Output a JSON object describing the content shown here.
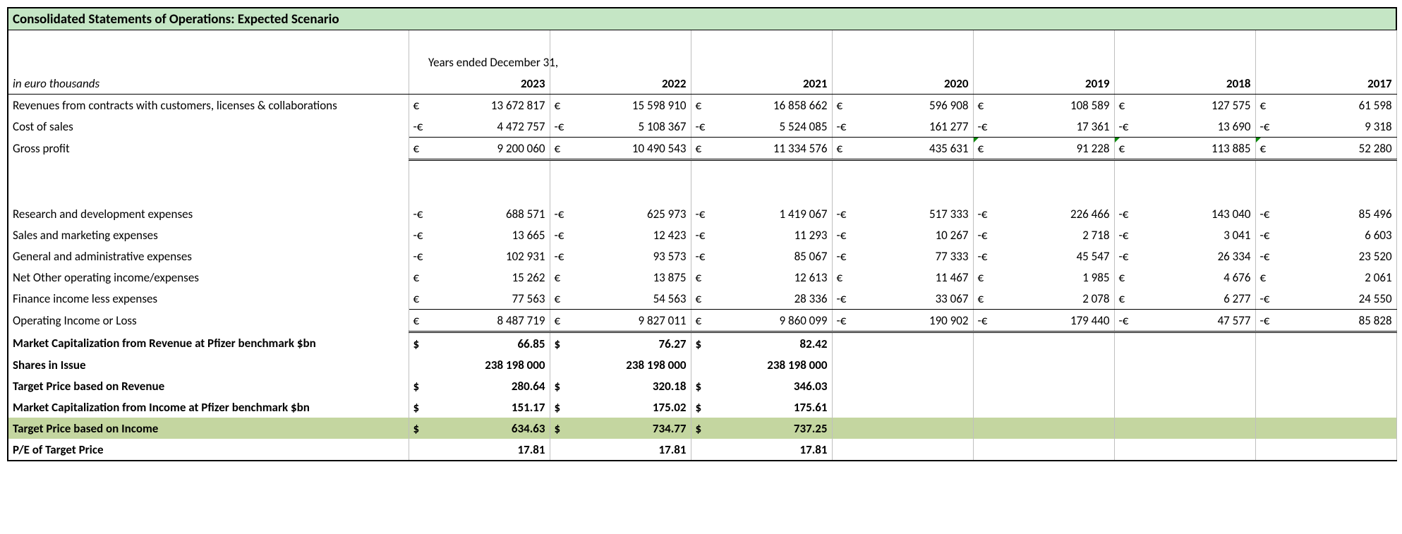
{
  "title": "Consolidated Statements of Operations: Expected Scenario",
  "periodLine": "Years ended December 31,",
  "unitLine": "in euro thousands",
  "years": [
    "2023",
    "2022",
    "2021",
    "2020",
    "2019",
    "2018",
    "2017"
  ],
  "rows": {
    "revenue": {
      "label": "Revenues from contracts with customers, licenses & collaborations",
      "cur": [
        "€",
        "€",
        "€",
        "€",
        "€",
        "€",
        "€"
      ],
      "vals": [
        "13 672 817",
        "15 598 910",
        "16 858 662",
        "596 908",
        "108 589",
        "127 575",
        "61 598"
      ]
    },
    "cos": {
      "label": "Cost of sales",
      "cur": [
        "-€",
        "-€",
        "-€",
        "-€",
        "-€",
        "-€",
        "-€"
      ],
      "vals": [
        "4 472 757",
        "5 108 367",
        "5 524 085",
        "161 277",
        "17 361",
        "13 690",
        "9 318"
      ]
    },
    "gp": {
      "label": "Gross profit",
      "cur": [
        "€",
        "€",
        "€",
        "€",
        "€",
        "€",
        "€"
      ],
      "vals": [
        "9 200 060",
        "10 490 543",
        "11 334 576",
        "435 631",
        "91 228",
        "113 885",
        "52 280"
      ],
      "flags": [
        false,
        false,
        false,
        false,
        true,
        true,
        true
      ]
    },
    "rnd": {
      "label": "Research and development expenses",
      "cur": [
        "-€",
        "-€",
        "-€",
        "-€",
        "-€",
        "-€",
        "-€"
      ],
      "vals": [
        "688 571",
        "625 973",
        "1 419 067",
        "517 333",
        "226 466",
        "143 040",
        "85 496"
      ]
    },
    "sm": {
      "label": "Sales and marketing expenses",
      "cur": [
        "-€",
        "-€",
        "-€",
        "-€",
        "-€",
        "-€",
        "-€"
      ],
      "vals": [
        "13 665",
        "12 423",
        "11 293",
        "10 267",
        "2 718",
        "3 041",
        "6 603"
      ]
    },
    "ga": {
      "label": "General and administrative expenses",
      "cur": [
        "-€",
        "-€",
        "-€",
        "-€",
        "-€",
        "-€",
        "-€"
      ],
      "vals": [
        "102 931",
        "93 573",
        "85 067",
        "77 333",
        "45 547",
        "26 334",
        "23 520"
      ]
    },
    "otherop": {
      "label": "Net Other operating income/expenses",
      "cur": [
        "€",
        "€",
        "€",
        "€",
        "€",
        "€",
        "€"
      ],
      "vals": [
        "15 262",
        "13 875",
        "12 613",
        "11 467",
        "1 985",
        "4 676",
        "2 061"
      ]
    },
    "fin": {
      "label": "Finance income less expenses",
      "cur": [
        "€",
        "€",
        "€",
        "-€",
        "€",
        "€",
        "-€"
      ],
      "vals": [
        "77 563",
        "54 563",
        "28 336",
        "33 067",
        "2 078",
        "6 277",
        "24 550"
      ]
    },
    "opinc": {
      "label": "Operating Income or Loss",
      "cur": [
        "€",
        "€",
        "€",
        "-€",
        "-€",
        "-€",
        "-€"
      ],
      "vals": [
        "8 487 719",
        "9 827 011",
        "9 860 099",
        "190 902",
        "179 440",
        "47 577",
        "85 828"
      ]
    },
    "mcaprev": {
      "label": "Market Capitalization from Revenue at Pfizer benchmark $bn",
      "cur": [
        "$",
        "$",
        "$",
        "",
        "",
        "",
        ""
      ],
      "vals": [
        "66.85",
        "76.27",
        "82.42",
        "",
        "",
        "",
        ""
      ]
    },
    "shares": {
      "label": "Shares in Issue",
      "cur": [
        "",
        "",
        "",
        "",
        "",
        "",
        ""
      ],
      "vals": [
        "238 198 000",
        "238 198 000",
        "238 198 000",
        "",
        "",
        "",
        ""
      ]
    },
    "tprev": {
      "label": "Target Price based on Revenue",
      "cur": [
        "$",
        "$",
        "$",
        "",
        "",
        "",
        ""
      ],
      "vals": [
        "280.64",
        "320.18",
        "346.03",
        "",
        "",
        "",
        ""
      ]
    },
    "mcapinc": {
      "label": "Market Capitalization from Income at Pfizer benchmark $bn",
      "cur": [
        "$",
        "$",
        "$",
        "",
        "",
        "",
        ""
      ],
      "vals": [
        "151.17",
        "175.02",
        "175.61",
        "",
        "",
        "",
        ""
      ]
    },
    "tpinc": {
      "label": "Target Price based on Income",
      "cur": [
        "$",
        "$",
        "$",
        "",
        "",
        "",
        ""
      ],
      "vals": [
        "634.63",
        "734.77",
        "737.25",
        "",
        "",
        "",
        ""
      ]
    },
    "pe": {
      "label": "P/E of Target Price",
      "cur": [
        "",
        "",
        "",
        "",
        "",
        "",
        ""
      ],
      "vals": [
        "17.81",
        "17.81",
        "17.81",
        "",
        "",
        "",
        ""
      ]
    }
  },
  "colors": {
    "titleBg": "#c5e6c5",
    "highlightBg": "#c4d6a0",
    "gridline": "#bfbfbf",
    "flag": "#0a8a0a"
  }
}
